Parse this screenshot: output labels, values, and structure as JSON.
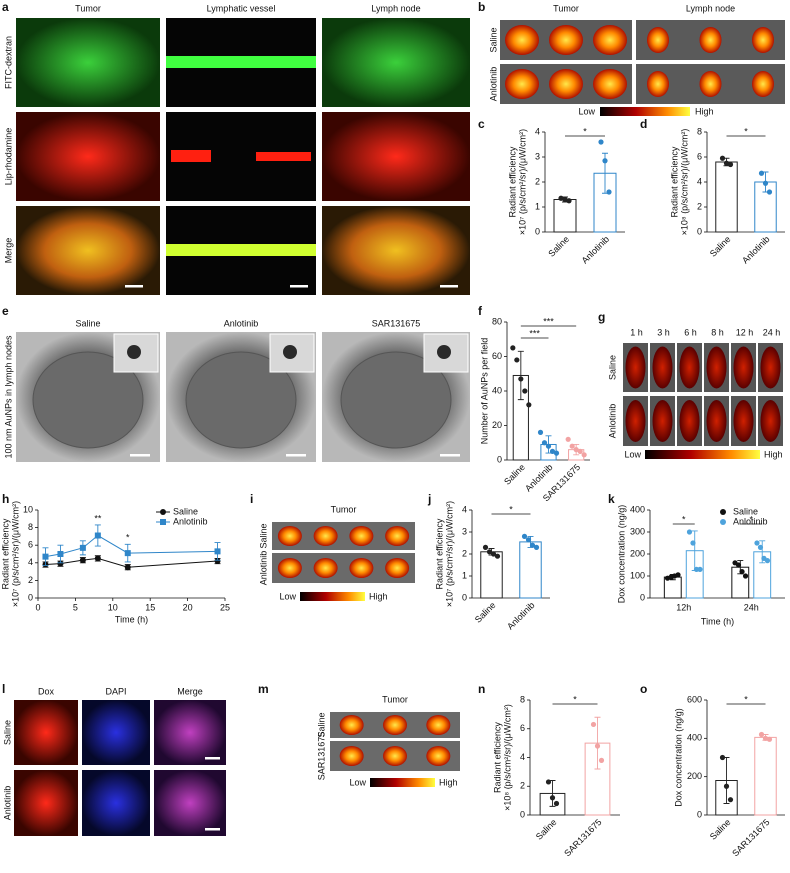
{
  "panels": [
    {
      "letter": "a",
      "columns": [
        "Tumor",
        "Lymphatic vessel",
        "Lymph node"
      ],
      "rows": [
        "FITC-dextran",
        "Lip-rhodamine",
        "Merge"
      ]
    },
    {
      "letter": "b",
      "columns": [
        "Tumor",
        "Lymph node"
      ],
      "rows": [
        "Saline",
        "Anlotinib"
      ],
      "colorbar": [
        "Low",
        "High"
      ]
    },
    {
      "letter": "e",
      "columns": [
        "Saline",
        "Anlotinib",
        "SAR131675"
      ],
      "row_label": "100 nm AuNPs in lymph nodes"
    },
    {
      "letter": "g",
      "columns": [
        "1 h",
        "3 h",
        "6 h",
        "8 h",
        "12 h",
        "24 h"
      ],
      "rows": [
        "Saline",
        "Anlotinib"
      ],
      "colorbar": [
        "Low",
        "High"
      ]
    },
    {
      "letter": "i",
      "title": "Tumor",
      "rows": [
        "Saline",
        "Anlotinib"
      ],
      "colorbar": [
        "Low",
        "High"
      ]
    },
    {
      "letter": "l",
      "columns": [
        "Dox",
        "DAPI",
        "Merge"
      ],
      "rows": [
        "Saline",
        "Anlotinib"
      ]
    },
    {
      "letter": "m",
      "title": "Tumor",
      "rows": [
        "Saline",
        "SAR131675"
      ],
      "colorbar": [
        "Low",
        "High"
      ]
    }
  ],
  "chart_data": [
    {
      "type": "bar",
      "panel": "c",
      "ylabel": [
        "Radiant efficiency",
        "×10⁷ (p/s/cm²/sr)/(μW/cm²)"
      ],
      "categories": [
        "Saline",
        "Anlotinib"
      ],
      "colors": [
        "#222222",
        "#2f86c9"
      ],
      "values": [
        1.3,
        2.35
      ],
      "errors": [
        0.1,
        0.8
      ],
      "points": [
        [
          1.35,
          1.3,
          1.25
        ],
        [
          3.6,
          2.85,
          1.6
        ]
      ],
      "ylim": [
        0,
        4
      ],
      "yticks": [
        0,
        1,
        2,
        3,
        4
      ],
      "annotations": [
        "*"
      ]
    },
    {
      "type": "bar",
      "panel": "d",
      "ylabel": [
        "Radiant efficiency",
        "×10⁸ (p/s/cm²/sr)/(μW/cm²)"
      ],
      "categories": [
        "Saline",
        "Anlotinib"
      ],
      "colors": [
        "#222222",
        "#2f86c9"
      ],
      "values": [
        5.6,
        4.0
      ],
      "errors": [
        0.3,
        0.8
      ],
      "points": [
        [
          5.9,
          5.5,
          5.4
        ],
        [
          4.7,
          3.9,
          3.2
        ]
      ],
      "ylim": [
        0,
        8
      ],
      "yticks": [
        0,
        2,
        4,
        6,
        8
      ],
      "annotations": [
        "*"
      ]
    },
    {
      "type": "bar",
      "panel": "f",
      "ylabel": [
        "Number of AuNPs per field"
      ],
      "categories": [
        "Saline",
        "Anlotinib",
        "SAR131675"
      ],
      "colors": [
        "#222222",
        "#2f86c9",
        "#f2a3a3"
      ],
      "values": [
        49,
        9,
        6
      ],
      "errors": [
        14,
        5,
        3
      ],
      "points": [
        [
          65,
          58,
          47,
          40,
          32
        ],
        [
          16,
          10,
          8,
          5,
          4
        ],
        [
          12,
          8,
          6,
          5,
          3
        ]
      ],
      "ylim": [
        0,
        80
      ],
      "yticks": [
        0,
        20,
        40,
        60,
        80
      ],
      "annotations": [
        "***",
        "***"
      ]
    },
    {
      "type": "line",
      "panel": "h",
      "ylabel": [
        "Radiant efficiency",
        "×10⁷ (p/s/cm²/sr)/(μW/cm²)"
      ],
      "xlabel": "Time (h)",
      "x": [
        1,
        3,
        6,
        8,
        12,
        24
      ],
      "series": [
        {
          "name": "Saline",
          "color": "#111111",
          "marker": "circle",
          "values": [
            3.8,
            3.9,
            4.3,
            4.5,
            3.5,
            4.2
          ],
          "errors": [
            0.3,
            0.3,
            0.3,
            0.3,
            0.3,
            0.3
          ]
        },
        {
          "name": "Anlotinib",
          "color": "#2f86c9",
          "marker": "square",
          "values": [
            4.7,
            5.0,
            5.7,
            7.1,
            5.1,
            5.3
          ],
          "errors": [
            1.0,
            1.0,
            0.8,
            1.2,
            1.0,
            1.0
          ]
        }
      ],
      "xlim": [
        0,
        25
      ],
      "xticks": [
        0,
        5,
        10,
        15,
        20,
        25
      ],
      "ylim": [
        0,
        10
      ],
      "yticks": [
        0,
        2,
        4,
        6,
        8,
        10
      ],
      "annotations": [
        null,
        null,
        null,
        "**",
        "*",
        null
      ],
      "legend": "upper right"
    },
    {
      "type": "bar",
      "panel": "j",
      "ylabel": [
        "Radiant efficiency",
        "×10⁷ (p/s/cm²/sr)/(μW/cm²)"
      ],
      "categories": [
        "Saline",
        "Anlotinib"
      ],
      "colors": [
        "#222222",
        "#2f86c9"
      ],
      "values": [
        2.1,
        2.55
      ],
      "errors": [
        0.15,
        0.25
      ],
      "points": [
        [
          2.3,
          2.1,
          2.0,
          1.9
        ],
        [
          2.8,
          2.65,
          2.4,
          2.3
        ]
      ],
      "ylim": [
        0,
        4
      ],
      "yticks": [
        0,
        1,
        2,
        3,
        4
      ],
      "annotations": [
        "*"
      ]
    },
    {
      "type": "grouped_bar",
      "panel": "k",
      "ylabel": [
        "Dox concentration (ng/g)"
      ],
      "xlabel": "Time (h)",
      "categories": [
        "12h",
        "24h"
      ],
      "series": [
        {
          "name": "Saline",
          "color": "#111111",
          "values": [
            95,
            140
          ],
          "errors": [
            12,
            30
          ],
          "points": [
            [
              90,
              95,
              100,
              105
            ],
            [
              160,
              150,
              120,
              100
            ]
          ]
        },
        {
          "name": "Anlotinib",
          "color": "#4ea3dc",
          "values": [
            215,
            210
          ],
          "errors": [
            90,
            50
          ],
          "points": [
            [
              300,
              250,
              130,
              130
            ],
            [
              250,
              230,
              180,
              170
            ]
          ]
        }
      ],
      "ylim": [
        0,
        400
      ],
      "yticks": [
        0,
        100,
        200,
        300,
        400
      ],
      "annotations": [
        "*",
        "*"
      ],
      "legend": "upper right"
    },
    {
      "type": "bar",
      "panel": "n",
      "ylabel": [
        "Radiant efficiency",
        "×10⁸ (p/s/cm²/sr)/(μW/cm²)"
      ],
      "categories": [
        "Saline",
        "SAR131675"
      ],
      "colors": [
        "#222222",
        "#f2a3a3"
      ],
      "values": [
        1.5,
        5.0
      ],
      "errors": [
        0.9,
        1.8
      ],
      "points": [
        [
          2.3,
          1.2,
          0.8
        ],
        [
          6.3,
          4.8,
          3.8
        ]
      ],
      "ylim": [
        0,
        8
      ],
      "yticks": [
        0,
        2,
        4,
        6,
        8
      ],
      "annotations": [
        "*"
      ]
    },
    {
      "type": "bar",
      "panel": "o",
      "ylabel": [
        "Dox concentration (ng/g)"
      ],
      "categories": [
        "Saline",
        "SAR131675"
      ],
      "colors": [
        "#222222",
        "#f2a3a3"
      ],
      "values": [
        180,
        405
      ],
      "errors": [
        120,
        15
      ],
      "points": [
        [
          300,
          150,
          80
        ],
        [
          420,
          400,
          395
        ]
      ],
      "ylim": [
        0,
        600
      ],
      "yticks": [
        0,
        200,
        400,
        600
      ],
      "annotations": [
        "*"
      ]
    }
  ]
}
